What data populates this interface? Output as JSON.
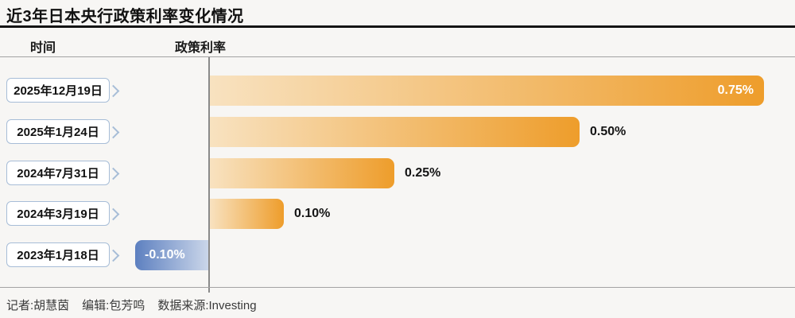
{
  "title": "近3年日本央行政策利率变化情况",
  "columns": {
    "time": "时间",
    "rate": "政策利率"
  },
  "footer": {
    "reporter": "记者:胡慧茵",
    "editor": "编辑:包芳鸣",
    "source": "数据来源:Investing"
  },
  "chart_data": {
    "type": "bar",
    "orientation": "horizontal",
    "title": "近3年日本央行政策利率变化情况",
    "categories": [
      "2025年12月19日",
      "2025年1月24日",
      "2024年7月31日",
      "2024年3月19日",
      "2023年1月18日"
    ],
    "values": [
      0.75,
      0.5,
      0.25,
      0.1,
      -0.1
    ],
    "value_labels": [
      "0.75%",
      "0.50%",
      "0.25%",
      "0.10%",
      "-0.10%"
    ],
    "label_positions": [
      "inside-end",
      "outside-end",
      "outside-end",
      "outside-end",
      "inside-start"
    ],
    "xlim": [
      -0.15,
      0.8
    ],
    "grid": false,
    "legend": "none",
    "colors": {
      "positive_bar_start": "#f8e2c0",
      "positive_bar_end": "#ee9d2b",
      "negative_bar_start": "#5d80c0",
      "negative_bar_end": "#ccd7ea",
      "tag_border": "#a7bdd7",
      "axis_line": "#8a8a8a",
      "value_label_inside": "#ffffff",
      "value_label_outside": "#141414"
    }
  }
}
